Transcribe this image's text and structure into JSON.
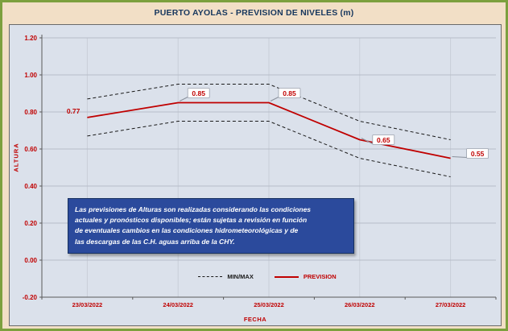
{
  "title": "PUERTO AYOLAS - PREVISION DE NIVELES (m)",
  "colors": {
    "accent_red": "#C00000",
    "title_blue": "#17375E",
    "page_bg": "#F2DFC6",
    "panel_bg": "#DBE1EB",
    "border_green": "#7CA03E",
    "note_bg": "#2B4A9C"
  },
  "axes": {
    "y_label": "ALTURA",
    "x_label": "FECHA"
  },
  "legend": [
    {
      "label": "MIN/MAX",
      "style": "dashed-black"
    },
    {
      "label": "PREVISION",
      "style": "solid-red"
    }
  ],
  "note": {
    "lines": [
      "Las previsiones de Alturas son realizadas considerando las condiciones",
      "actuales y pronósticos disponibles;  están sujetas a revisión en función",
      "de eventuales cambios en las condiciones hidrometeorológicas y de",
      "las descargas de las C.H. aguas arriba de la CHY."
    ]
  },
  "chart_data": {
    "type": "line",
    "title": "PUERTO AYOLAS - PREVISION DE NIVELES (m)",
    "xlabel": "FECHA",
    "ylabel": "ALTURA",
    "categories": [
      "23/03/2022",
      "24/03/2022",
      "25/03/2022",
      "26/03/2022",
      "27/03/2022"
    ],
    "series": [
      {
        "name": "MAX",
        "style": "dashed-black",
        "values": [
          0.87,
          0.95,
          0.95,
          0.75,
          0.65
        ]
      },
      {
        "name": "PREVISION",
        "style": "solid-red",
        "values": [
          0.77,
          0.85,
          0.85,
          0.65,
          0.55
        ],
        "data_labels": [
          "0.77",
          "0.85",
          "0.85",
          "0.65",
          "0.55"
        ]
      },
      {
        "name": "MIN",
        "style": "dashed-black",
        "values": [
          0.67,
          0.75,
          0.75,
          0.55,
          0.45
        ]
      }
    ],
    "ylim": [
      -0.2,
      1.2
    ],
    "y_ticks": [
      1.2,
      1.0,
      0.8,
      0.6,
      0.4,
      0.2,
      0.0,
      -0.2
    ],
    "grid": true,
    "legend_position": "bottom-center"
  }
}
